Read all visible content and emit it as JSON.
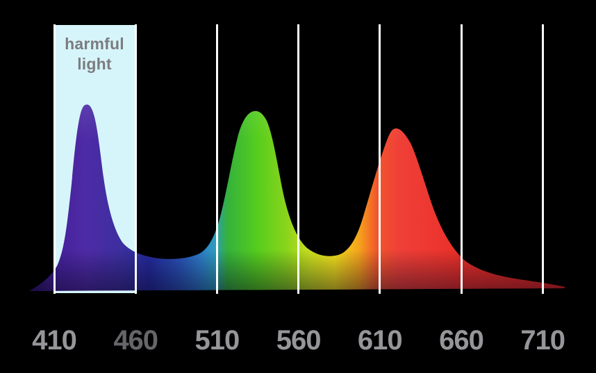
{
  "colors": {
    "background": "#000000",
    "gridline": "#ffffff",
    "band_fill": "#d6f5fa",
    "band_text": "#7c7c80",
    "tick_default": "#96969a",
    "tick_460": "#66666a"
  },
  "harmful_band": {
    "label": "harmful\nlight",
    "wavelength_range_nm": [
      410,
      460
    ]
  },
  "chart_data": {
    "type": "area",
    "title": "",
    "xlabel": "",
    "ylabel": "",
    "grid": "vertical white gridlines at each x tick",
    "background": "#000000",
    "x_axis": {
      "range_nm": [
        395,
        723
      ],
      "ticks": [
        {
          "label": "410",
          "color": "#96969a"
        },
        {
          "label": "460",
          "color": "#66666a"
        },
        {
          "label": "510",
          "color": "#96969a"
        },
        {
          "label": "560",
          "color": "#96969a"
        },
        {
          "label": "610",
          "color": "#96969a"
        },
        {
          "label": "660",
          "color": "#96969a"
        },
        {
          "label": "710",
          "color": "#96969a"
        }
      ]
    },
    "annotations": [
      {
        "text": "harmful light",
        "band_x_nm": [
          410,
          460
        ],
        "fill": "#d6f5fa",
        "text_color": "#7c7c80"
      }
    ],
    "peaks": [
      {
        "wavelength_nm": 430,
        "relative_intensity": 1.0,
        "hue": "violet"
      },
      {
        "wavelength_nm": 533,
        "relative_intensity": 0.98,
        "hue": "green"
      },
      {
        "wavelength_nm": 619,
        "relative_intensity": 0.88,
        "hue": "red"
      }
    ],
    "valleys": [
      {
        "wavelength_nm": 475,
        "relative_intensity": 0.17
      },
      {
        "wavelength_nm": 577,
        "relative_intensity": 0.19
      }
    ],
    "series": [
      {
        "name": "spectrum",
        "points_nm_intensity": [
          [
            395,
            0
          ],
          [
            400,
            0.04
          ],
          [
            405,
            0.07
          ],
          [
            410,
            0.11
          ],
          [
            414,
            0.2
          ],
          [
            418,
            0.45
          ],
          [
            422,
            0.72
          ],
          [
            426,
            0.92
          ],
          [
            430,
            1.0
          ],
          [
            434,
            0.95
          ],
          [
            438,
            0.78
          ],
          [
            442,
            0.6
          ],
          [
            446,
            0.45
          ],
          [
            450,
            0.34
          ],
          [
            455,
            0.25
          ],
          [
            460,
            0.2
          ],
          [
            465,
            0.18
          ],
          [
            470,
            0.17
          ],
          [
            475,
            0.17
          ],
          [
            480,
            0.17
          ],
          [
            485,
            0.17
          ],
          [
            490,
            0.18
          ],
          [
            495,
            0.2
          ],
          [
            500,
            0.24
          ],
          [
            505,
            0.3
          ],
          [
            510,
            0.38
          ],
          [
            515,
            0.52
          ],
          [
            520,
            0.68
          ],
          [
            525,
            0.85
          ],
          [
            530,
            0.96
          ],
          [
            533,
            0.98
          ],
          [
            537,
            0.94
          ],
          [
            541,
            0.8
          ],
          [
            545,
            0.64
          ],
          [
            550,
            0.47
          ],
          [
            555,
            0.35
          ],
          [
            560,
            0.27
          ],
          [
            565,
            0.22
          ],
          [
            570,
            0.19
          ],
          [
            575,
            0.19
          ],
          [
            580,
            0.2
          ],
          [
            585,
            0.25
          ],
          [
            590,
            0.32
          ],
          [
            595,
            0.42
          ],
          [
            600,
            0.53
          ],
          [
            605,
            0.65
          ],
          [
            610,
            0.76
          ],
          [
            615,
            0.85
          ],
          [
            619,
            0.88
          ],
          [
            623,
            0.86
          ],
          [
            627,
            0.8
          ],
          [
            631,
            0.71
          ],
          [
            635,
            0.62
          ],
          [
            640,
            0.52
          ],
          [
            645,
            0.43
          ],
          [
            650,
            0.35
          ],
          [
            655,
            0.28
          ],
          [
            660,
            0.22
          ],
          [
            665,
            0.18
          ],
          [
            670,
            0.14
          ],
          [
            675,
            0.12
          ],
          [
            680,
            0.1
          ],
          [
            685,
            0.08
          ],
          [
            690,
            0.07
          ],
          [
            695,
            0.06
          ],
          [
            700,
            0.05
          ],
          [
            705,
            0.04
          ],
          [
            710,
            0.035
          ],
          [
            715,
            0.025
          ],
          [
            720,
            0.015
          ],
          [
            723,
            0
          ]
        ]
      }
    ],
    "spectrum_gradient": [
      {
        "offset": 0.0,
        "color": "#2e1468"
      },
      {
        "offset": 0.05,
        "color": "#45219a"
      },
      {
        "offset": 0.105,
        "color": "#4e2ba6"
      },
      {
        "offset": 0.175,
        "color": "#3b2f9e"
      },
      {
        "offset": 0.225,
        "color": "#242a9c"
      },
      {
        "offset": 0.28,
        "color": "#2a52b8"
      },
      {
        "offset": 0.32,
        "color": "#2e7cc8"
      },
      {
        "offset": 0.345,
        "color": "#2d9ac0"
      },
      {
        "offset": 0.37,
        "color": "#35b13c"
      },
      {
        "offset": 0.425,
        "color": "#55cd1d"
      },
      {
        "offset": 0.48,
        "color": "#8ad41c"
      },
      {
        "offset": 0.525,
        "color": "#cade1e"
      },
      {
        "offset": 0.57,
        "color": "#f2e01c"
      },
      {
        "offset": 0.615,
        "color": "#f5a51c"
      },
      {
        "offset": 0.65,
        "color": "#f2552c"
      },
      {
        "offset": 0.69,
        "color": "#ef4038"
      },
      {
        "offset": 0.8,
        "color": "#ea3029"
      },
      {
        "offset": 1.0,
        "color": "#da251f"
      }
    ]
  }
}
